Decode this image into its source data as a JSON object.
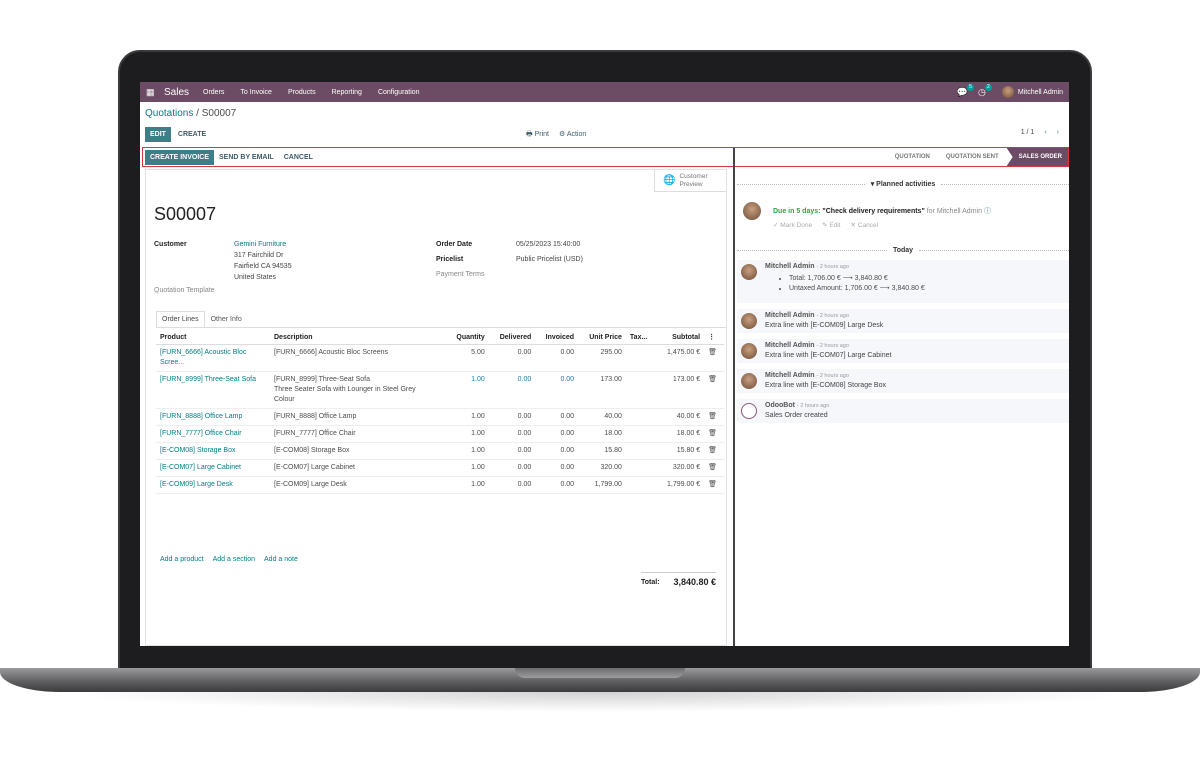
{
  "nav": {
    "app": "Sales",
    "menu": [
      "Orders",
      "To Invoice",
      "Products",
      "Reporting",
      "Configuration"
    ],
    "messages_count": "5",
    "activities_count": "2",
    "user": "Mitchell Admin",
    "color": "#6b4c64"
  },
  "breadcrumb": {
    "parent": "Quotations",
    "current": "S00007"
  },
  "controls": {
    "edit": "EDIT",
    "create": "CREATE",
    "print": "Print",
    "action": "Action",
    "pager": "1 / 1"
  },
  "statusbar": {
    "buttons": [
      "CREATE INVOICE",
      "SEND BY EMAIL",
      "CANCEL"
    ],
    "stages": [
      "QUOTATION",
      "QUOTATION SENT",
      "SALES ORDER"
    ],
    "current_stage": "SALES ORDER"
  },
  "form": {
    "customer_preview": "Customer Preview",
    "name": "S00007",
    "customer_label": "Customer",
    "customer": "Gemini Furniture",
    "address": [
      "317 Fairchild Dr",
      "Fairfield CA 94535",
      "United States"
    ],
    "quotation_template": "Quotation Template",
    "order_date_label": "Order Date",
    "order_date": "05/25/2023 15:40:00",
    "pricelist_label": "Pricelist",
    "pricelist": "Public Pricelist (USD)",
    "payment_terms": "Payment Terms",
    "tabs": [
      "Order Lines",
      "Other Info"
    ],
    "columns": [
      "Product",
      "Description",
      "Quantity",
      "Delivered",
      "Invoiced",
      "Unit Price",
      "Tax...",
      "Subtotal"
    ],
    "lines": [
      {
        "product": "[FURN_6666] Acoustic Bloc Scree...",
        "description": "[FURN_6666] Acoustic Bloc Screens",
        "qty": "5.00",
        "delivered": "0.00",
        "invoiced": "0.00",
        "price": "295.00",
        "subtotal": "1,475.00 €"
      },
      {
        "product": "[FURN_8999] Three-Seat Sofa",
        "description": "[FURN_8999] Three-Seat Sofa",
        "description2": "Three Seater Sofa with Lounger in Steel Grey",
        "description3": "Colour",
        "qty": "1.00",
        "delivered": "0.00",
        "invoiced": "0.00",
        "price": "173.00",
        "subtotal": "173.00 €"
      },
      {
        "product": "[FURN_8888] Office Lamp",
        "description": "[FURN_8888] Office Lamp",
        "qty": "1.00",
        "delivered": "0.00",
        "invoiced": "0.00",
        "price": "40.00",
        "subtotal": "40.00 €"
      },
      {
        "product": "[FURN_7777] Office Chair",
        "description": "[FURN_7777] Office Chair",
        "qty": "1.00",
        "delivered": "0.00",
        "invoiced": "0.00",
        "price": "18.00",
        "subtotal": "18.00 €"
      },
      {
        "product": "[E-COM08] Storage Box",
        "description": "[E-COM08] Storage Box",
        "qty": "1.00",
        "delivered": "0.00",
        "invoiced": "0.00",
        "price": "15.80",
        "subtotal": "15.80 €"
      },
      {
        "product": "[E-COM07] Large Cabinet",
        "description": "[E-COM07] Large Cabinet",
        "qty": "1.00",
        "delivered": "0.00",
        "invoiced": "0.00",
        "price": "320.00",
        "subtotal": "320.00 €"
      },
      {
        "product": "[E-COM09] Large Desk",
        "description": "[E-COM09] Large Desk",
        "qty": "1.00",
        "delivered": "0.00",
        "invoiced": "0.00",
        "price": "1,799.00",
        "subtotal": "1,799.00 €"
      }
    ],
    "add_links": [
      "Add a product",
      "Add a section",
      "Add a note"
    ],
    "total_label": "Total:",
    "total": "3,840.80 €"
  },
  "chatter": {
    "planned": "Planned activities",
    "activity": {
      "due": "Due in 5 days:",
      "title": "\"Check delivery requirements\"",
      "for": "for Mitchell Admin",
      "mark_done": "Mark Done",
      "edit": "Edit",
      "cancel": "Cancel"
    },
    "today": "Today",
    "messages": [
      {
        "author": "Mitchell Admin",
        "ago": "- 2 hours ago",
        "bullets": [
          "Total: 1,706.00 € ⟶ 3,840.80 €",
          "Untaxed Amount: 1,706.00 € ⟶ 3,840.80 €"
        ]
      },
      {
        "author": "Mitchell Admin",
        "ago": "- 2 hours ago",
        "text": "Extra line with [E-COM09] Large Desk"
      },
      {
        "author": "Mitchell Admin",
        "ago": "- 2 hours ago",
        "text": "Extra line with [E-COM07] Large Cabinet"
      },
      {
        "author": "Mitchell Admin",
        "ago": "- 2 hours ago",
        "text": "Extra line with [E-COM08] Storage Box"
      },
      {
        "author": "OdooBot",
        "ago": "- 2 hours ago",
        "text": "Sales Order created"
      }
    ]
  }
}
